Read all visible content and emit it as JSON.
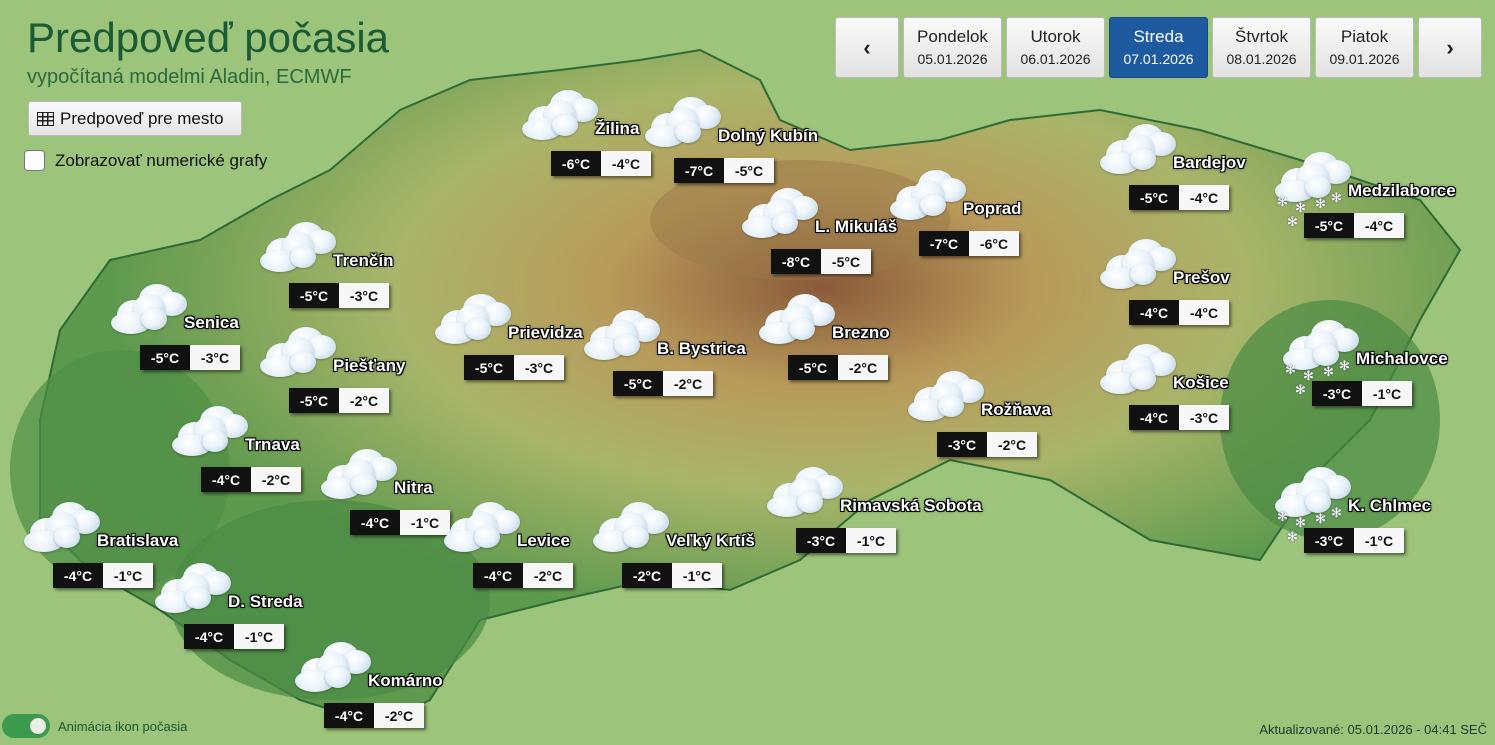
{
  "header": {
    "title": "Predpoveď počasia",
    "subtitle": "vypočítaná modelmi Aladin, ECMWF"
  },
  "controls": {
    "city_forecast_button": "Predpoveď pre mesto",
    "numeric_graphs_label": "Zobrazovať numerické grafy",
    "numeric_graphs_checked": false
  },
  "days": {
    "prev_icon": "chevron-left-icon",
    "next_icon": "chevron-right-icon",
    "prev": "‹",
    "next": "›",
    "items": [
      {
        "name": "Pondelok",
        "date": "05.01.2026",
        "active": false
      },
      {
        "name": "Utorok",
        "date": "06.01.2026",
        "active": false
      },
      {
        "name": "Streda",
        "date": "07.01.2026",
        "active": true
      },
      {
        "name": "Štvrtok",
        "date": "08.01.2026",
        "active": false
      },
      {
        "name": "Piatok",
        "date": "09.01.2026",
        "active": false
      }
    ]
  },
  "cities": [
    {
      "name": "Žilina",
      "min": "-6°C",
      "max": "-4°C",
      "icon": "cloudy-icon"
    },
    {
      "name": "Dolný Kubín",
      "min": "-7°C",
      "max": "-5°C",
      "icon": "cloudy-icon"
    },
    {
      "name": "L. Mikuláš",
      "min": "-8°C",
      "max": "-5°C",
      "icon": "cloudy-icon"
    },
    {
      "name": "Poprad",
      "min": "-7°C",
      "max": "-6°C",
      "icon": "cloudy-icon"
    },
    {
      "name": "Bardejov",
      "min": "-5°C",
      "max": "-4°C",
      "icon": "cloudy-icon"
    },
    {
      "name": "Medzilaborce",
      "min": "-5°C",
      "max": "-4°C",
      "icon": "cloudy-snow-icon"
    },
    {
      "name": "Trenčín",
      "min": "-5°C",
      "max": "-3°C",
      "icon": "cloudy-icon"
    },
    {
      "name": "Senica",
      "min": "-5°C",
      "max": "-3°C",
      "icon": "cloudy-icon"
    },
    {
      "name": "Piešťany",
      "min": "-5°C",
      "max": "-2°C",
      "icon": "cloudy-icon"
    },
    {
      "name": "Prievidza",
      "min": "-5°C",
      "max": "-3°C",
      "icon": "cloudy-icon"
    },
    {
      "name": "B. Bystrica",
      "min": "-5°C",
      "max": "-2°C",
      "icon": "cloudy-icon"
    },
    {
      "name": "Brezno",
      "min": "-5°C",
      "max": "-2°C",
      "icon": "cloudy-icon"
    },
    {
      "name": "Prešov",
      "min": "-4°C",
      "max": "-4°C",
      "icon": "cloudy-icon"
    },
    {
      "name": "Michalovce",
      "min": "-3°C",
      "max": "-1°C",
      "icon": "cloudy-snow-icon"
    },
    {
      "name": "Košice",
      "min": "-4°C",
      "max": "-3°C",
      "icon": "cloudy-icon"
    },
    {
      "name": "Rožňava",
      "min": "-3°C",
      "max": "-2°C",
      "icon": "cloudy-icon"
    },
    {
      "name": "Trnava",
      "min": "-4°C",
      "max": "-2°C",
      "icon": "cloudy-icon"
    },
    {
      "name": "Nitra",
      "min": "-4°C",
      "max": "-1°C",
      "icon": "cloudy-icon"
    },
    {
      "name": "Rimavská Sobota",
      "min": "-3°C",
      "max": "-1°C",
      "icon": "cloudy-icon"
    },
    {
      "name": "K. Chlmec",
      "min": "-3°C",
      "max": "-1°C",
      "icon": "cloudy-snow-icon"
    },
    {
      "name": "Bratislava",
      "min": "-4°C",
      "max": "-1°C",
      "icon": "cloudy-icon"
    },
    {
      "name": "Levice",
      "min": "-4°C",
      "max": "-2°C",
      "icon": "cloudy-icon"
    },
    {
      "name": "Veľký Krtíš",
      "min": "-2°C",
      "max": "-1°C",
      "icon": "cloudy-icon"
    },
    {
      "name": "D. Streda",
      "min": "-4°C",
      "max": "-1°C",
      "icon": "cloudy-icon"
    },
    {
      "name": "Komárno",
      "min": "-4°C",
      "max": "-2°C",
      "icon": "cloudy-icon"
    }
  ],
  "footer": {
    "animation_label": "Animácia ikon počasia",
    "animation_on": true,
    "updated": "Aktualizované: 05.01.2026 - 04:41 SEČ"
  }
}
